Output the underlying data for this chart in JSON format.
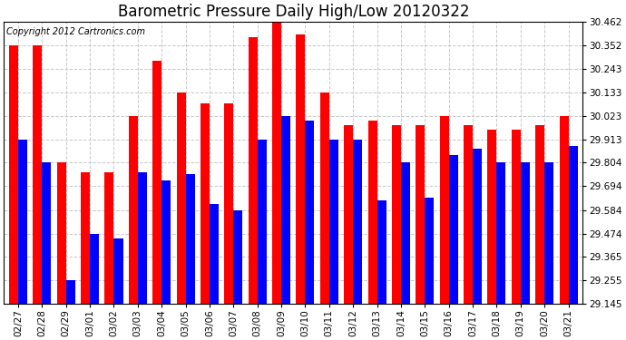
{
  "title": "Barometric Pressure Daily High/Low 20120322",
  "copyright_text": "Copyright 2012 Cartronics.com",
  "dates": [
    "02/27",
    "02/28",
    "02/29",
    "03/01",
    "03/02",
    "03/03",
    "03/04",
    "03/05",
    "03/06",
    "03/07",
    "03/08",
    "03/09",
    "03/10",
    "03/11",
    "03/12",
    "03/13",
    "03/14",
    "03/15",
    "03/16",
    "03/17",
    "03/18",
    "03/19",
    "03/20",
    "03/21"
  ],
  "highs": [
    30.352,
    30.352,
    29.804,
    29.76,
    29.76,
    30.023,
    30.28,
    30.133,
    30.08,
    30.08,
    30.39,
    30.462,
    30.4,
    30.133,
    29.98,
    29.999,
    29.98,
    29.98,
    30.023,
    29.98,
    29.96,
    29.96,
    29.98,
    30.023
  ],
  "lows": [
    29.913,
    29.804,
    29.255,
    29.474,
    29.45,
    29.76,
    29.72,
    29.75,
    29.61,
    29.584,
    29.913,
    30.023,
    30.0,
    29.913,
    29.913,
    29.63,
    29.804,
    29.64,
    29.84,
    29.87,
    29.804,
    29.804,
    29.804,
    29.88
  ],
  "ylim_min": 29.145,
  "ylim_max": 30.462,
  "yticks": [
    29.145,
    29.255,
    29.365,
    29.474,
    29.584,
    29.694,
    29.804,
    29.913,
    30.023,
    30.133,
    30.243,
    30.352,
    30.462
  ],
  "bar_width": 0.38,
  "high_color": "#ff0000",
  "low_color": "#0000ff",
  "bg_color": "#ffffff",
  "grid_color": "#c8c8c8",
  "title_fontsize": 12,
  "tick_fontsize": 7.5,
  "copyright_fontsize": 7
}
